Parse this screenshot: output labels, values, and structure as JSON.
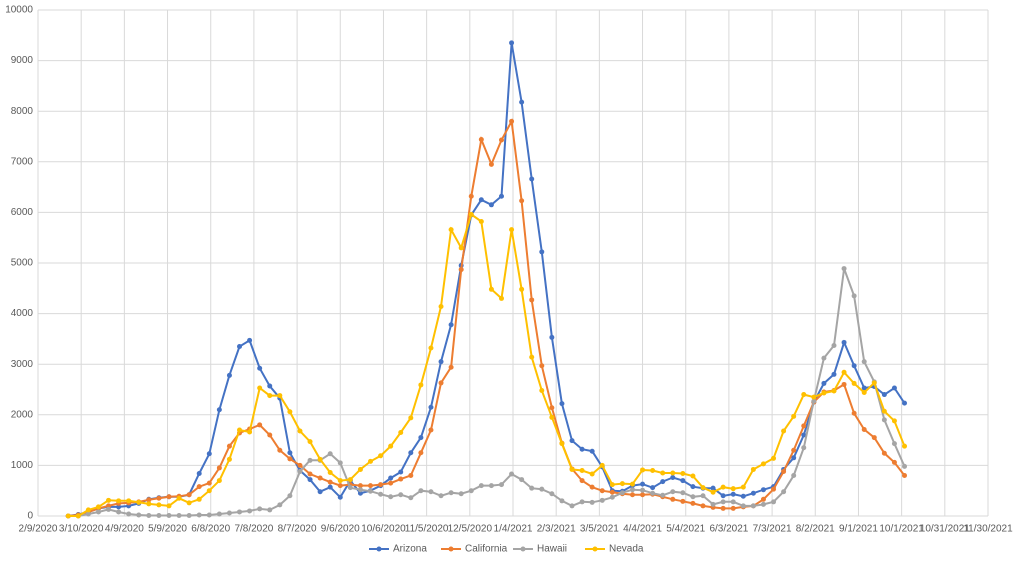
{
  "chart_data": {
    "type": "line",
    "x": [
      "3/1/2020",
      "3/8/2020",
      "3/15/2020",
      "3/22/2020",
      "3/29/2020",
      "4/5/2020",
      "4/12/2020",
      "4/19/2020",
      "4/26/2020",
      "5/3/2020",
      "5/10/2020",
      "5/17/2020",
      "5/24/2020",
      "5/31/2020",
      "6/7/2020",
      "6/14/2020",
      "6/21/2020",
      "6/28/2020",
      "7/5/2020",
      "7/12/2020",
      "7/19/2020",
      "7/26/2020",
      "8/2/2020",
      "8/9/2020",
      "8/16/2020",
      "8/23/2020",
      "8/30/2020",
      "9/6/2020",
      "9/13/2020",
      "9/20/2020",
      "9/27/2020",
      "10/4/2020",
      "10/11/2020",
      "10/18/2020",
      "10/25/2020",
      "11/1/2020",
      "11/8/2020",
      "11/15/2020",
      "11/22/2020",
      "11/29/2020",
      "12/6/2020",
      "12/13/2020",
      "12/20/2020",
      "12/27/2020",
      "1/3/2021",
      "1/10/2021",
      "1/17/2021",
      "1/24/2021",
      "1/31/2021",
      "2/7/2021",
      "2/14/2021",
      "2/21/2021",
      "2/28/2021",
      "3/7/2021",
      "3/14/2021",
      "3/21/2021",
      "3/28/2021",
      "4/4/2021",
      "4/11/2021",
      "4/18/2021",
      "4/25/2021",
      "5/2/2021",
      "5/9/2021",
      "5/16/2021",
      "5/23/2021",
      "5/30/2021",
      "6/6/2021",
      "6/13/2021",
      "6/20/2021",
      "6/27/2021",
      "7/4/2021",
      "7/11/2021",
      "7/18/2021",
      "7/25/2021",
      "8/1/2021",
      "8/8/2021",
      "8/15/2021",
      "8/22/2021",
      "8/29/2021",
      "9/5/2021",
      "9/12/2021",
      "9/19/2021",
      "9/26/2021",
      "10/3/2021"
    ],
    "series": [
      {
        "name": "Arizona",
        "color": "#4472c4",
        "values": [
          0,
          30,
          80,
          150,
          180,
          180,
          200,
          250,
          330,
          360,
          380,
          380,
          420,
          840,
          1230,
          2100,
          2780,
          3350,
          3470,
          2920,
          2570,
          2330,
          1250,
          900,
          720,
          480,
          570,
          370,
          700,
          450,
          500,
          600,
          750,
          870,
          1250,
          1550,
          2150,
          3050,
          3780,
          4950,
          5950,
          6250,
          6150,
          6320,
          9350,
          8180,
          6660,
          5220,
          3530,
          2220,
          1490,
          1320,
          1280,
          970,
          500,
          490,
          600,
          630,
          560,
          680,
          760,
          700,
          580,
          550,
          550,
          400,
          430,
          390,
          450,
          520,
          580,
          920,
          1150,
          1600,
          2250,
          2620,
          2800,
          3430,
          2970,
          2530,
          2560,
          2400,
          2530,
          2230
        ]
      },
      {
        "name": "California",
        "color": "#ed7d31",
        "values": [
          0,
          20,
          80,
          150,
          200,
          250,
          260,
          280,
          320,
          350,
          380,
          390,
          420,
          580,
          650,
          950,
          1380,
          1640,
          1720,
          1800,
          1600,
          1300,
          1130,
          1000,
          830,
          750,
          670,
          600,
          620,
          600,
          600,
          620,
          650,
          730,
          800,
          1250,
          1700,
          2630,
          2940,
          4870,
          6320,
          7440,
          6950,
          7430,
          7800,
          6230,
          4270,
          2970,
          2140,
          1440,
          930,
          700,
          570,
          500,
          470,
          440,
          420,
          420,
          430,
          380,
          330,
          290,
          250,
          200,
          170,
          150,
          150,
          180,
          200,
          330,
          530,
          880,
          1300,
          1780,
          2250,
          2450,
          2480,
          2600,
          2030,
          1710,
          1550,
          1240,
          1060,
          800
        ]
      },
      {
        "name": "Hawaii",
        "color": "#a5a5a5",
        "values": [
          0,
          0,
          40,
          80,
          130,
          80,
          40,
          20,
          10,
          10,
          10,
          10,
          10,
          20,
          20,
          40,
          60,
          80,
          100,
          140,
          120,
          220,
          400,
          880,
          1100,
          1100,
          1230,
          1050,
          560,
          520,
          490,
          430,
          380,
          420,
          360,
          500,
          480,
          400,
          460,
          440,
          500,
          600,
          600,
          620,
          830,
          720,
          550,
          530,
          440,
          300,
          200,
          280,
          270,
          310,
          370,
          460,
          520,
          510,
          450,
          410,
          480,
          460,
          380,
          400,
          230,
          280,
          280,
          200,
          200,
          230,
          280,
          480,
          800,
          1350,
          2270,
          3120,
          3370,
          4890,
          4350,
          3050,
          2650,
          1900,
          1430,
          980
        ]
      },
      {
        "name": "Nevada",
        "color": "#ffc000",
        "values": [
          0,
          0,
          120,
          180,
          310,
          300,
          300,
          270,
          240,
          220,
          200,
          350,
          260,
          330,
          500,
          700,
          1120,
          1700,
          1660,
          2530,
          2380,
          2380,
          2060,
          1680,
          1470,
          1120,
          860,
          700,
          720,
          920,
          1080,
          1190,
          1380,
          1650,
          1940,
          2590,
          3320,
          4140,
          5660,
          5300,
          5960,
          5820,
          4480,
          4300,
          5660,
          4480,
          3140,
          2480,
          1950,
          1430,
          920,
          900,
          830,
          1000,
          620,
          640,
          630,
          910,
          900,
          850,
          850,
          840,
          790,
          560,
          470,
          570,
          540,
          570,
          920,
          1030,
          1140,
          1680,
          1970,
          2400,
          2350,
          2430,
          2470,
          2840,
          2620,
          2440,
          2630,
          2070,
          1880,
          1380
        ]
      }
    ],
    "xlim": [
      "2/9/2020",
      "11/30/2021"
    ],
    "xticks": [
      "2/9/2020",
      "3/10/2020",
      "4/9/2020",
      "5/9/2020",
      "6/8/2020",
      "7/8/2020",
      "8/7/2020",
      "9/6/2020",
      "10/6/2020",
      "11/5/2020",
      "12/5/2020",
      "1/4/2021",
      "2/3/2021",
      "3/5/2021",
      "4/4/2021",
      "5/4/2021",
      "6/3/2021",
      "7/3/2021",
      "8/2/2021",
      "9/1/2021",
      "10/1/2021",
      "10/31/2021",
      "11/30/2021"
    ],
    "ylim": [
      0,
      10000
    ],
    "yticks": [
      0,
      1000,
      2000,
      3000,
      4000,
      5000,
      6000,
      7000,
      8000,
      9000,
      10000
    ],
    "grid": true,
    "legend": "bottom"
  }
}
